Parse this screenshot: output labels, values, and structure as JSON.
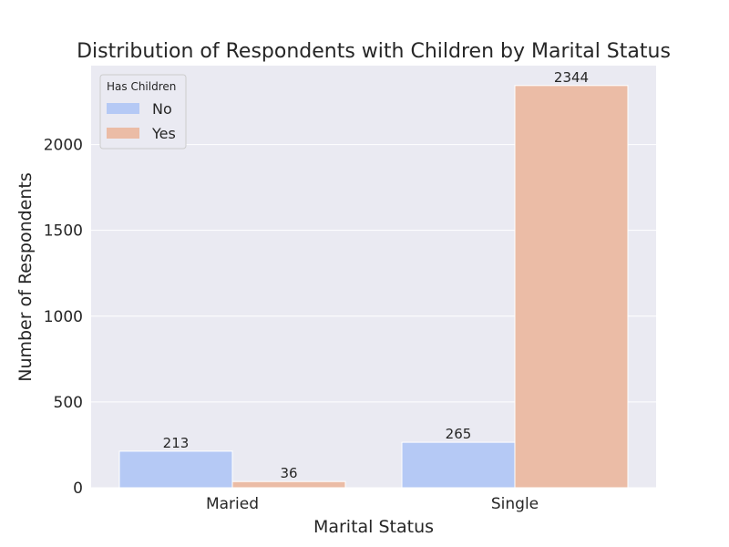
{
  "chart_data": {
    "type": "bar",
    "title": "Distribution of Respondents with Children by Marital Status",
    "xlabel": "Marital Status",
    "ylabel": "Number of Respondents",
    "categories": [
      "Maried",
      "Single"
    ],
    "series": [
      {
        "name": "No",
        "values": [
          213,
          265
        ],
        "color": "#b5c9f5"
      },
      {
        "name": "Yes",
        "values": [
          36,
          2344
        ],
        "color": "#ebbca6"
      }
    ],
    "ylim": [
      0,
      2460
    ],
    "yticks": [
      0,
      500,
      1000,
      1500,
      2000
    ],
    "grid": true,
    "legend": {
      "title": "Has Children",
      "placement": "top-left"
    },
    "background_color": "#eaeaf2"
  }
}
